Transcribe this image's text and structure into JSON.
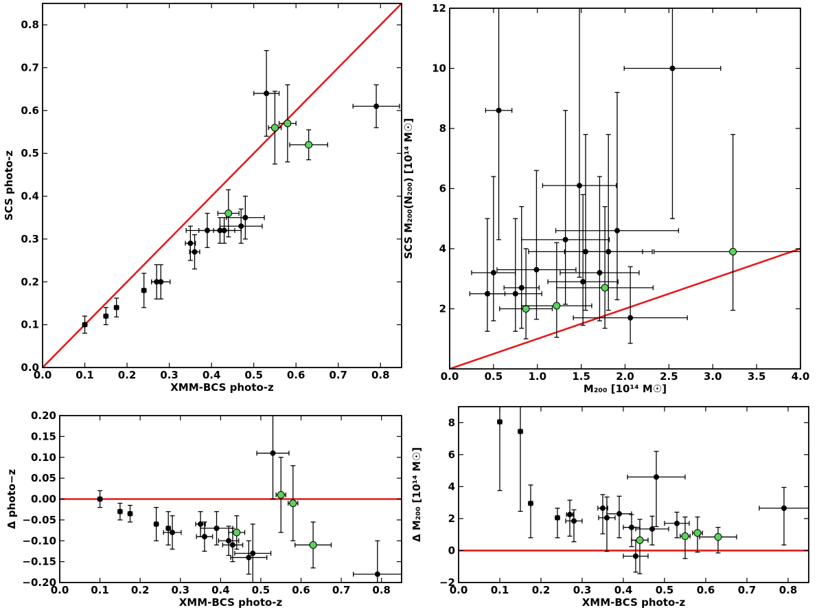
{
  "chart_data": [
    {
      "id": "top-left",
      "type": "scatter",
      "xlabel": "XMM-BCS photo-z",
      "ylabel": "SCS photo-z",
      "xlim": [
        0.0,
        0.85
      ],
      "ylim": [
        0.0,
        0.85
      ],
      "xticks": [
        0.0,
        0.1,
        0.2,
        0.3,
        0.4,
        0.5,
        0.6,
        0.7,
        0.8
      ],
      "xtick_labels": [
        "0.0",
        "0.1",
        "0.2",
        "0.3",
        "0.4",
        "0.5",
        "0.6",
        "0.7",
        "0.8"
      ],
      "yticks": [
        0.0,
        0.1,
        0.2,
        0.3,
        0.4,
        0.5,
        0.6,
        0.7,
        0.8
      ],
      "ytick_labels": [
        "0.0",
        "0.1",
        "0.2",
        "0.3",
        "0.4",
        "0.5",
        "0.6",
        "0.7",
        "0.8"
      ],
      "grid": false,
      "reference_line": {
        "x": [
          0.0,
          0.85
        ],
        "y": [
          0.0,
          0.85
        ],
        "color": "#e31a1c"
      },
      "series": [
        {
          "color": "#000000",
          "points": [
            {
              "x": 0.1,
              "y": 0.1,
              "xerr": 0.005,
              "yerr": 0.02
            },
            {
              "x": 0.15,
              "y": 0.12,
              "xerr": 0.005,
              "yerr": 0.02
            },
            {
              "x": 0.175,
              "y": 0.14,
              "xerr": 0.005,
              "yerr": 0.022
            },
            {
              "x": 0.24,
              "y": 0.18,
              "xerr": 0.005,
              "yerr": 0.04
            },
            {
              "x": 0.27,
              "y": 0.2,
              "xerr": 0.012,
              "yerr": 0.04
            },
            {
              "x": 0.28,
              "y": 0.2,
              "xerr": 0.022,
              "yerr": 0.04
            },
            {
              "x": 0.35,
              "y": 0.29,
              "xerr": 0.012,
              "yerr": 0.04
            },
            {
              "x": 0.36,
              "y": 0.27,
              "xerr": 0.012,
              "yerr": 0.04
            },
            {
              "x": 0.39,
              "y": 0.32,
              "xerr": 0.05,
              "yerr": 0.04
            },
            {
              "x": 0.42,
              "y": 0.32,
              "xerr": 0.05,
              "yerr": 0.03
            },
            {
              "x": 0.43,
              "y": 0.32,
              "xerr": 0.025,
              "yerr": 0.03
            },
            {
              "x": 0.47,
              "y": 0.33,
              "xerr": 0.05,
              "yerr": 0.04
            },
            {
              "x": 0.48,
              "y": 0.35,
              "xerr": 0.045,
              "yerr": 0.05
            },
            {
              "x": 0.53,
              "y": 0.64,
              "xerr": 0.03,
              "yerr": 0.1
            },
            {
              "x": 0.79,
              "y": 0.61,
              "xerr": 0.055,
              "yerr": 0.05
            }
          ]
        },
        {
          "color": "#5bd35b",
          "points": [
            {
              "x": 0.44,
              "y": 0.36,
              "xerr": 0.025,
              "yerr": 0.055
            },
            {
              "x": 0.55,
              "y": 0.56,
              "xerr": 0.015,
              "yerr": 0.085
            },
            {
              "x": 0.58,
              "y": 0.57,
              "xerr": 0.02,
              "yerr": 0.09
            },
            {
              "x": 0.63,
              "y": 0.52,
              "xerr": 0.045,
              "yerr": 0.035
            }
          ]
        }
      ]
    },
    {
      "id": "top-right",
      "type": "scatter",
      "xlabel": "M₂₀₀ [10¹⁴ M☉]",
      "ylabel": "SCS M₂₀₀(N₂₀₀) [10¹⁴ M☉]",
      "xlim": [
        0.0,
        4.0
      ],
      "ylim": [
        0.0,
        12.0
      ],
      "xticks": [
        0.0,
        0.5,
        1.0,
        1.5,
        2.0,
        2.5,
        3.0,
        3.5,
        4.0
      ],
      "xtick_labels": [
        "0.0",
        "0.5",
        "1.0",
        "1.5",
        "2.0",
        "2.5",
        "3.0",
        "3.5",
        "4.0"
      ],
      "yticks": [
        2,
        4,
        6,
        8,
        10,
        12
      ],
      "ytick_labels": [
        "2",
        "4",
        "6",
        "8",
        "10",
        "12"
      ],
      "grid": false,
      "reference_line": {
        "x": [
          0.0,
          4.0
        ],
        "y": [
          0.0,
          4.0
        ],
        "color": "#e31a1c"
      },
      "series": [
        {
          "color": "#000000",
          "points": [
            {
              "x": 0.43,
              "y": 2.5,
              "xerr": 0.2,
              "yerr_lo": 1.25,
              "yerr_hi": 2.5
            },
            {
              "x": 0.5,
              "y": 3.2,
              "xerr": 0.25,
              "yerr_lo": 1.6,
              "yerr_hi": 3.2
            },
            {
              "x": 0.56,
              "y": 8.6,
              "xerr": 0.15,
              "yerr_lo": 4.3,
              "yerr_hi": 4.3
            },
            {
              "x": 0.75,
              "y": 2.5,
              "xerr": 0.3,
              "yerr_lo": 1.25,
              "yerr_hi": 2.5
            },
            {
              "x": 0.82,
              "y": 2.7,
              "xerr": 0.2,
              "yerr_lo": 1.35,
              "yerr_hi": 2.7
            },
            {
              "x": 0.99,
              "y": 3.3,
              "xerr": 0.45,
              "yerr_lo": 1.65,
              "yerr_hi": 3.3
            },
            {
              "x": 1.32,
              "y": 4.3,
              "xerr": 0.5,
              "yerr_lo": 2.15,
              "yerr_hi": 4.3
            },
            {
              "x": 1.48,
              "y": 6.1,
              "xerr": 0.42,
              "yerr_lo": 3.05,
              "yerr_hi": 6.1
            },
            {
              "x": 1.52,
              "y": 2.9,
              "xerr": 0.4,
              "yerr_lo": 1.45,
              "yerr_hi": 2.9
            },
            {
              "x": 1.55,
              "y": 3.9,
              "xerr": 0.65,
              "yerr_lo": 1.95,
              "yerr_hi": 3.9
            },
            {
              "x": 1.71,
              "y": 3.2,
              "xerr": 0.45,
              "yerr_lo": 1.6,
              "yerr_hi": 3.2
            },
            {
              "x": 1.81,
              "y": 3.9,
              "xerr": 0.5,
              "yerr_lo": 1.95,
              "yerr_hi": 3.9
            },
            {
              "x": 1.91,
              "y": 4.6,
              "xerr": 0.7,
              "yerr_lo": 2.3,
              "yerr_hi": 4.6
            },
            {
              "x": 2.06,
              "y": 1.7,
              "xerr": 0.65,
              "yerr_lo": 0.85,
              "yerr_hi": 1.7
            },
            {
              "x": 2.54,
              "y": 10.0,
              "xerr": 0.55,
              "yerr_lo": 5.0,
              "yerr_hi": 5.0
            }
          ]
        },
        {
          "color": "#5bd35b",
          "points": [
            {
              "x": 0.87,
              "y": 2.0,
              "xerr": 0.3,
              "yerr_lo": 1.0,
              "yerr_hi": 2.0
            },
            {
              "x": 1.22,
              "y": 2.1,
              "xerr": 0.4,
              "yerr_lo": 1.05,
              "yerr_hi": 2.1
            },
            {
              "x": 1.77,
              "y": 2.7,
              "xerr": 0.55,
              "yerr_lo": 1.35,
              "yerr_hi": 2.7
            },
            {
              "x": 3.23,
              "y": 3.9,
              "xerr": 0.9,
              "yerr_lo": 1.95,
              "yerr_hi": 3.9
            }
          ]
        }
      ]
    },
    {
      "id": "bottom-left",
      "type": "scatter",
      "xlabel": "XMM-BCS photo-z",
      "ylabel": "Δ photo−z",
      "xlim": [
        0.0,
        0.85
      ],
      "ylim": [
        -0.2,
        0.2
      ],
      "xticks": [
        0.0,
        0.1,
        0.2,
        0.3,
        0.4,
        0.5,
        0.6,
        0.7,
        0.8
      ],
      "xtick_labels": [
        "0.0",
        "0.1",
        "0.2",
        "0.3",
        "0.4",
        "0.5",
        "0.6",
        "0.7",
        "0.8"
      ],
      "yticks": [
        -0.2,
        -0.15,
        -0.1,
        -0.05,
        0.0,
        0.05,
        0.1,
        0.15,
        0.2
      ],
      "ytick_labels": [
        "−0.20",
        "−0.15",
        "−0.10",
        "−0.05",
        "0.00",
        "0.05",
        "0.10",
        "0.15",
        "0.20"
      ],
      "grid": false,
      "reference_line": {
        "x": [
          0.0,
          0.85
        ],
        "y": [
          0.0,
          0.0
        ],
        "color": "#e31a1c"
      },
      "series": [
        {
          "color": "#000000",
          "points": [
            {
              "x": 0.1,
              "y": 0.0,
              "xerr": 0.005,
              "yerr": 0.02
            },
            {
              "x": 0.15,
              "y": -0.03,
              "xerr": 0.005,
              "yerr": 0.02
            },
            {
              "x": 0.175,
              "y": -0.035,
              "xerr": 0.005,
              "yerr": 0.02
            },
            {
              "x": 0.24,
              "y": -0.06,
              "xerr": 0.005,
              "yerr": 0.04
            },
            {
              "x": 0.27,
              "y": -0.07,
              "xerr": 0.005,
              "yerr": 0.04
            },
            {
              "x": 0.28,
              "y": -0.08,
              "xerr": 0.022,
              "yerr": 0.04
            },
            {
              "x": 0.35,
              "y": -0.06,
              "xerr": 0.012,
              "yerr": 0.03
            },
            {
              "x": 0.36,
              "y": -0.09,
              "xerr": 0.02,
              "yerr": 0.035
            },
            {
              "x": 0.39,
              "y": -0.07,
              "xerr": 0.04,
              "yerr": 0.04
            },
            {
              "x": 0.42,
              "y": -0.1,
              "xerr": 0.025,
              "yerr": 0.035
            },
            {
              "x": 0.43,
              "y": -0.11,
              "xerr": 0.025,
              "yerr": 0.04
            },
            {
              "x": 0.47,
              "y": -0.14,
              "xerr": 0.045,
              "yerr": 0.04
            },
            {
              "x": 0.48,
              "y": -0.13,
              "xerr": 0.045,
              "yerr": 0.07
            },
            {
              "x": 0.53,
              "y": 0.11,
              "xerr": 0.04,
              "yerr": 0.11
            },
            {
              "x": 0.79,
              "y": -0.18,
              "xerr": 0.06,
              "yerr": 0.08
            }
          ]
        },
        {
          "color": "#5bd35b",
          "points": [
            {
              "x": 0.44,
              "y": -0.08,
              "xerr": 0.02,
              "yerr": 0.04
            },
            {
              "x": 0.55,
              "y": 0.01,
              "xerr": 0.012,
              "yerr": 0.09
            },
            {
              "x": 0.58,
              "y": -0.01,
              "xerr": 0.012,
              "yerr": 0.09
            },
            {
              "x": 0.63,
              "y": -0.11,
              "xerr": 0.045,
              "yerr": 0.055
            }
          ]
        }
      ]
    },
    {
      "id": "bottom-right",
      "type": "scatter",
      "xlabel": "XMM-BCS photo-z",
      "ylabel": "Δ M₂₀₀ [10¹⁴ M☉]",
      "xlim": [
        0.0,
        0.85
      ],
      "ylim": [
        -2.0,
        9.0
      ],
      "xticks": [
        0.0,
        0.1,
        0.2,
        0.3,
        0.4,
        0.5,
        0.6,
        0.7,
        0.8
      ],
      "xtick_labels": [
        "0.0",
        "0.1",
        "0.2",
        "0.3",
        "0.4",
        "0.5",
        "0.6",
        "0.7",
        "0.8"
      ],
      "yticks": [
        -2,
        0,
        2,
        4,
        6,
        8
      ],
      "ytick_labels": [
        "−2",
        "0",
        "2",
        "4",
        "6",
        "8"
      ],
      "grid": false,
      "reference_line": {
        "x": [
          0.0,
          0.85
        ],
        "y": [
          0.0,
          0.0
        ],
        "color": "#e31a1c"
      },
      "series": [
        {
          "color": "#000000",
          "points": [
            {
              "x": 0.1,
              "y": 8.05,
              "xerr": 0.005,
              "yerr_lo": 4.3,
              "yerr_hi": 3.0
            },
            {
              "x": 0.15,
              "y": 7.45,
              "xerr": 0.005,
              "yerr_lo": 5.0,
              "yerr_hi": 3.0
            },
            {
              "x": 0.175,
              "y": 2.95,
              "xerr": 0.005,
              "yerr_lo": 2.15,
              "yerr_hi": 1.15
            },
            {
              "x": 0.24,
              "y": 2.05,
              "xerr": 0.005,
              "yerr_lo": 1.25,
              "yerr_hi": 0.6
            },
            {
              "x": 0.27,
              "y": 2.25,
              "xerr": 0.008,
              "yerr_lo": 1.35,
              "yerr_hi": 0.9
            },
            {
              "x": 0.28,
              "y": 1.85,
              "xerr": 0.02,
              "yerr_lo": 1.3,
              "yerr_hi": 0.7
            },
            {
              "x": 0.35,
              "y": 2.65,
              "xerr": 0.012,
              "yerr_lo": 1.6,
              "yerr_hi": 0.85
            },
            {
              "x": 0.36,
              "y": 2.05,
              "xerr": 0.02,
              "yerr_lo": 2.1,
              "yerr_hi": 1.3
            },
            {
              "x": 0.39,
              "y": 2.3,
              "xerr": 0.03,
              "yerr_lo": 1.5,
              "yerr_hi": 1.1
            },
            {
              "x": 0.42,
              "y": 1.45,
              "xerr": 0.02,
              "yerr_lo": 1.2,
              "yerr_hi": 0.8
            },
            {
              "x": 0.43,
              "y": -0.35,
              "xerr": 0.03,
              "yerr_lo": 1.0,
              "yerr_hi": 1.0
            },
            {
              "x": 0.47,
              "y": 1.35,
              "xerr": 0.04,
              "yerr_lo": 1.0,
              "yerr_hi": 0.8
            },
            {
              "x": 0.48,
              "y": 4.6,
              "xerr": 0.07,
              "yerr_lo": 3.1,
              "yerr_hi": 1.6
            },
            {
              "x": 0.53,
              "y": 1.7,
              "xerr": 0.03,
              "yerr_lo": 0.9,
              "yerr_hi": 0.7
            },
            {
              "x": 0.79,
              "y": 2.65,
              "xerr": 0.06,
              "yerr_lo": 2.3,
              "yerr_hi": 1.3
            }
          ]
        },
        {
          "color": "#5bd35b",
          "points": [
            {
              "x": 0.44,
              "y": 0.65,
              "xerr": 0.02,
              "yerr_lo": 2.1,
              "yerr_hi": 1.3
            },
            {
              "x": 0.55,
              "y": 0.9,
              "xerr": 0.012,
              "yerr_lo": 1.4,
              "yerr_hi": 1.2
            },
            {
              "x": 0.58,
              "y": 1.1,
              "xerr": 0.012,
              "yerr_lo": 1.2,
              "yerr_hi": 1.0
            },
            {
              "x": 0.63,
              "y": 0.85,
              "xerr": 0.045,
              "yerr_lo": 1.0,
              "yerr_hi": 0.6
            }
          ]
        }
      ]
    }
  ]
}
